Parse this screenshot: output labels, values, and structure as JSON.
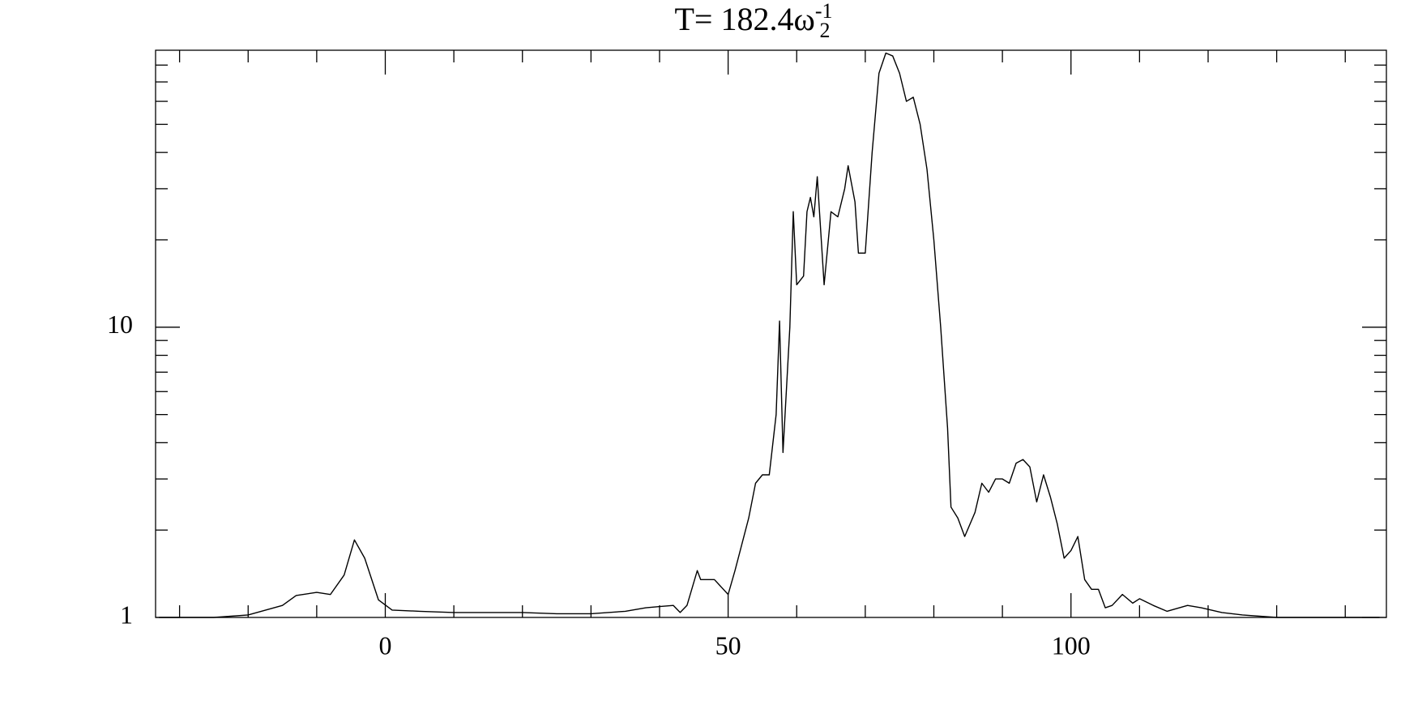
{
  "chart_data": {
    "type": "line",
    "title": "T= 182.4ω",
    "title_superscript": "-1",
    "title_subscript": "2",
    "x": [
      -33,
      -25,
      -20,
      -15,
      -13,
      -10,
      -8,
      -6,
      -4.5,
      -3,
      -1,
      1,
      5,
      10,
      20,
      25,
      30,
      35,
      38,
      40,
      42,
      43,
      44,
      45.5,
      46,
      48,
      50,
      51,
      53,
      54,
      55,
      56,
      57,
      57.5,
      58,
      59,
      59.5,
      60,
      61,
      61.5,
      62,
      62.5,
      63,
      64,
      65,
      66,
      67,
      67.5,
      68.5,
      69,
      70,
      71,
      72,
      73,
      74,
      75,
      76,
      77,
      78,
      79,
      80,
      81,
      82,
      82.5,
      83.5,
      84.5,
      86,
      87,
      88,
      89,
      90,
      91,
      92,
      93,
      94,
      95,
      96,
      97,
      98,
      99,
      100,
      101,
      102,
      103,
      104,
      105,
      106,
      107.5,
      109,
      110,
      112,
      114,
      117,
      119,
      122,
      125,
      130,
      145
    ],
    "values": [
      1.0,
      1.0,
      1.02,
      1.1,
      1.19,
      1.22,
      1.2,
      1.4,
      1.85,
      1.6,
      1.15,
      1.06,
      1.05,
      1.04,
      1.04,
      1.03,
      1.03,
      1.05,
      1.08,
      1.09,
      1.1,
      1.04,
      1.1,
      1.45,
      1.35,
      1.35,
      1.2,
      1.45,
      2.2,
      2.9,
      3.1,
      3.1,
      5,
      10.5,
      3.7,
      10,
      25,
      14,
      15,
      25,
      28,
      24,
      33,
      14,
      25,
      24,
      30,
      36,
      27,
      18,
      18,
      40,
      75,
      88,
      86,
      75,
      60,
      62,
      50,
      35,
      20,
      10,
      4.5,
      2.4,
      2.2,
      1.9,
      2.3,
      2.9,
      2.7,
      3.0,
      3.0,
      2.9,
      3.4,
      3.5,
      3.3,
      2.5,
      3.1,
      2.6,
      2.1,
      1.6,
      1.7,
      1.9,
      1.35,
      1.25,
      1.25,
      1.08,
      1.1,
      1.2,
      1.12,
      1.16,
      1.1,
      1.05,
      1.1,
      1.08,
      1.04,
      1.02,
      1.0,
      1.0
    ],
    "color": "#000000",
    "xlim": [
      -33.5,
      146
    ],
    "xticks": [
      0,
      50,
      100
    ],
    "xminorticks": [
      -30,
      -20,
      -10,
      10,
      20,
      30,
      40,
      60,
      70,
      80,
      90,
      110,
      120,
      130,
      140
    ],
    "ylim": [
      1,
      90
    ],
    "yscale": "log",
    "yticks": [
      1,
      10
    ],
    "yminorticks": [
      2,
      3,
      4,
      5,
      6,
      7,
      8,
      9,
      20,
      30,
      40,
      50,
      60,
      70,
      80
    ]
  }
}
